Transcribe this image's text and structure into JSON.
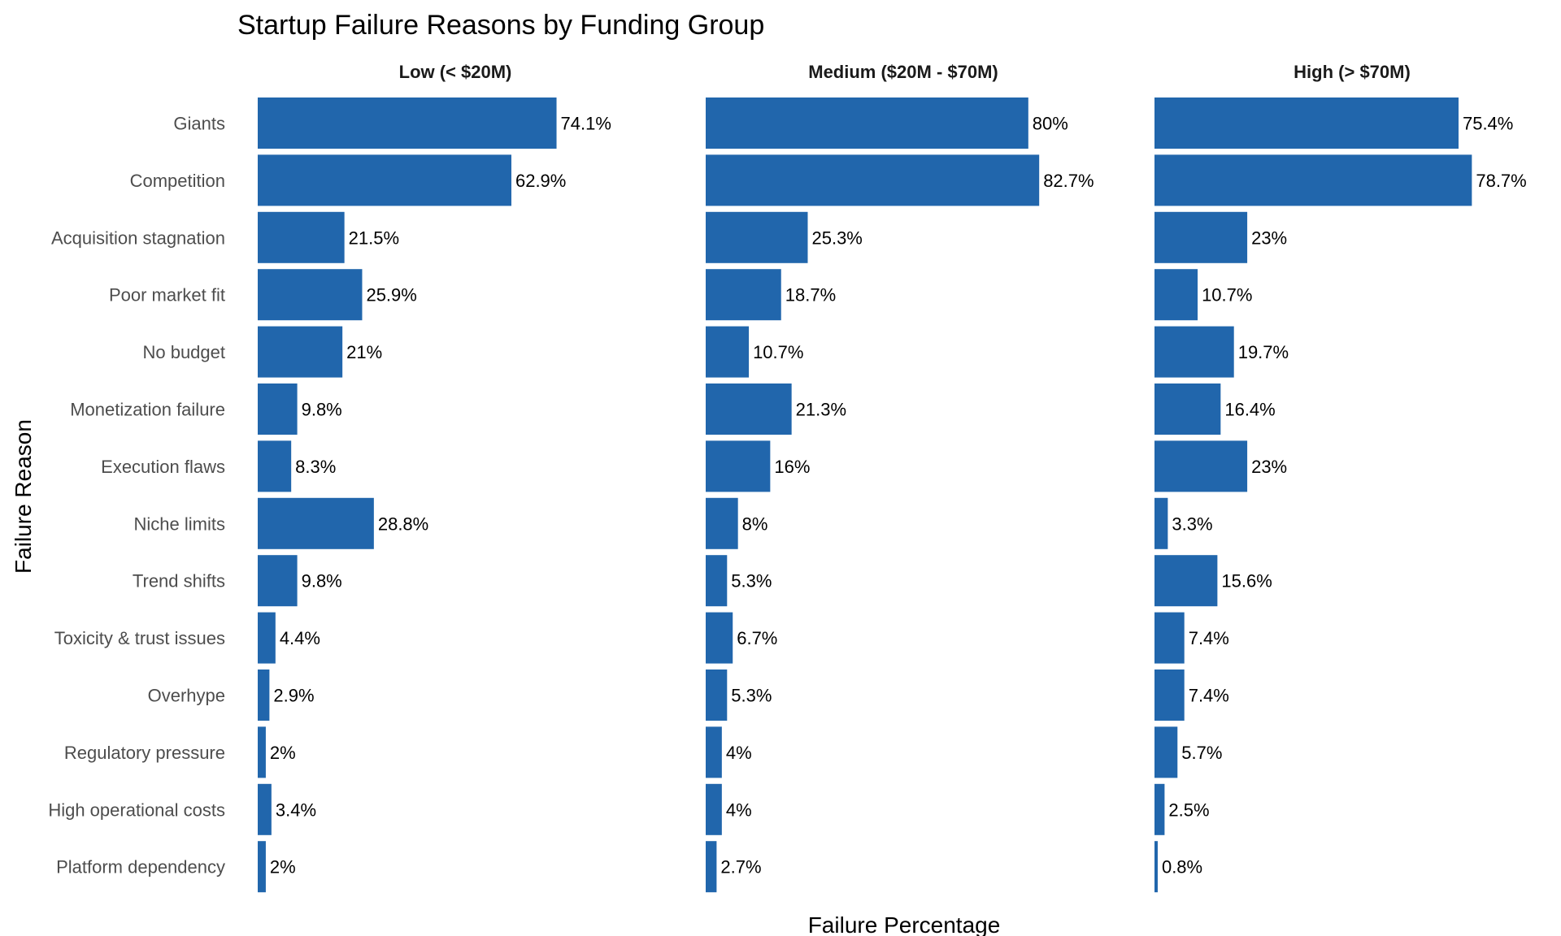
{
  "chart_data": {
    "type": "bar",
    "orientation": "horizontal",
    "title": "Startup Failure Reasons by Funding Group",
    "xlabel": "Failure Percentage",
    "ylabel": "Failure Reason",
    "bar_color": "#2166ac",
    "grid": false,
    "legend": "none",
    "categories": [
      "Giants",
      "Competition",
      "Acquisition stagnation",
      "Poor market fit",
      "No budget",
      "Monetization failure",
      "Execution flaws",
      "Niche limits",
      "Trend shifts",
      "Toxicity & trust issues",
      "Overhype",
      "Regulatory pressure",
      "High operational costs",
      "Platform dependency"
    ],
    "xlim": [
      0,
      100
    ],
    "panels": [
      {
        "name": "Low (< $20M)",
        "values": [
          74.1,
          62.9,
          21.5,
          25.9,
          21,
          9.8,
          8.3,
          28.8,
          9.8,
          4.4,
          2.9,
          2,
          3.4,
          2
        ],
        "labels": [
          "74.1%",
          "62.9%",
          "21.5%",
          "25.9%",
          "21%",
          "9.8%",
          "8.3%",
          "28.8%",
          "9.8%",
          "4.4%",
          "2.9%",
          "2%",
          "3.4%",
          "2%"
        ]
      },
      {
        "name": "Medium ($20M - $70M)",
        "values": [
          80,
          82.7,
          25.3,
          18.7,
          10.7,
          21.3,
          16,
          8,
          5.3,
          6.7,
          5.3,
          4,
          4,
          2.7
        ],
        "labels": [
          "80%",
          "82.7%",
          "25.3%",
          "18.7%",
          "10.7%",
          "21.3%",
          "16%",
          "8%",
          "5.3%",
          "6.7%",
          "5.3%",
          "4%",
          "4%",
          "2.7%"
        ]
      },
      {
        "name": "High (> $70M)",
        "values": [
          75.4,
          78.7,
          23,
          10.7,
          19.7,
          16.4,
          23,
          3.3,
          15.6,
          7.4,
          7.4,
          5.7,
          2.5,
          0.8
        ],
        "labels": [
          "75.4%",
          "78.7%",
          "23%",
          "10.7%",
          "19.7%",
          "16.4%",
          "23%",
          "3.3%",
          "15.6%",
          "7.4%",
          "7.4%",
          "5.7%",
          "2.5%",
          "0.8%"
        ]
      }
    ]
  }
}
